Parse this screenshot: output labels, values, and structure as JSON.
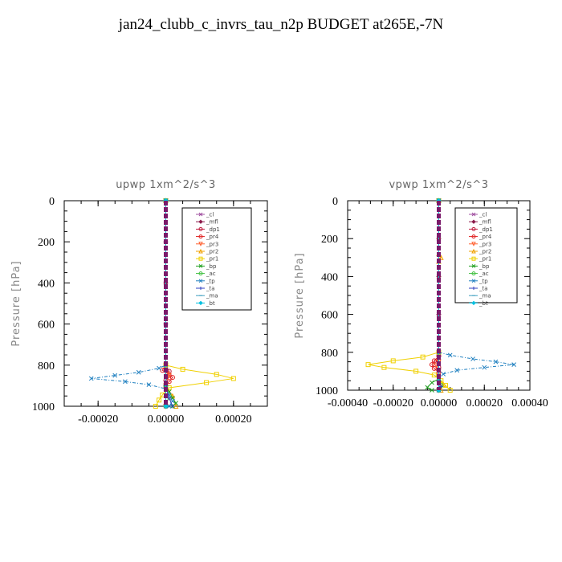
{
  "page_title": "jan24_clubb_c_invrs_tau_n2p  BUDGET at265E,-7N",
  "chart_data": [
    {
      "type": "line",
      "title": "upwp   1xm^2/s^3",
      "ylabel": "Pressure [hPa]",
      "xlabel": "",
      "xlim": [
        -0.0003,
        0.0003
      ],
      "ylim": [
        1000,
        0
      ],
      "xticks": [
        -0.0002,
        0.0,
        0.0002
      ],
      "xtick_labels": [
        "-0.00020",
        "0.00000",
        "0.00020"
      ],
      "yticks": [
        0,
        200,
        400,
        600,
        800,
        1000
      ],
      "ytick_labels": [
        "0",
        "200",
        "400",
        "600",
        "800",
        "1000"
      ],
      "legend_position": "top-right",
      "series": [
        {
          "name": "_cl",
          "color": "#a050a0",
          "marker": "x",
          "points": [
            [
              0,
              0
            ],
            [
              0,
              200
            ],
            [
              0,
              400
            ],
            [
              0,
              600
            ],
            [
              0,
              800
            ],
            [
              0,
              1000
            ]
          ]
        },
        {
          "name": "_mfl",
          "color": "#8b1a4a",
          "marker": "diamond",
          "points": [
            [
              0,
              0
            ],
            [
              0,
              200
            ],
            [
              0,
              400
            ],
            [
              0,
              600
            ],
            [
              0,
              800
            ],
            [
              0,
              1000
            ]
          ]
        },
        {
          "name": "_dp1",
          "color": "#c02040",
          "marker": "circle",
          "points": [
            [
              0,
              0
            ],
            [
              0,
              800
            ],
            [
              1e-05,
              830
            ],
            [
              1e-05,
              850
            ],
            [
              0,
              875
            ],
            [
              0,
              900
            ],
            [
              0,
              1000
            ]
          ]
        },
        {
          "name": "_pr4",
          "color": "#e02020",
          "marker": "circle",
          "points": [
            [
              0,
              0
            ],
            [
              0,
              800
            ],
            [
              -1e-05,
              825
            ],
            [
              5e-06,
              840
            ],
            [
              2e-05,
              860
            ],
            [
              1e-05,
              880
            ],
            [
              0,
              900
            ],
            [
              0,
              1000
            ]
          ]
        },
        {
          "name": "_pr3",
          "color": "#ff6030",
          "marker": "triangle-down",
          "points": [
            [
              0,
              0
            ],
            [
              0,
              800
            ],
            [
              1e-05,
              850
            ],
            [
              0,
              900
            ],
            [
              0,
              1000
            ]
          ]
        },
        {
          "name": "_pr2",
          "color": "#f0a000",
          "marker": "triangle",
          "points": [
            [
              0,
              0
            ],
            [
              0,
              900
            ],
            [
              2e-05,
              950
            ],
            [
              3e-05,
              1000
            ]
          ]
        },
        {
          "name": "_pr1",
          "color": "#f0d000",
          "marker": "square",
          "points": [
            [
              0,
              0
            ],
            [
              0,
              800
            ],
            [
              5e-05,
              820
            ],
            [
              0.00015,
              845
            ],
            [
              0.0002,
              865
            ],
            [
              0.00012,
              885
            ],
            [
              1e-05,
              910
            ],
            [
              -1e-05,
              945
            ],
            [
              -2e-05,
              970
            ],
            [
              -3e-05,
              1000
            ]
          ]
        },
        {
          "name": "_bp",
          "color": "#20a020",
          "marker": "x",
          "points": [
            [
              0,
              0
            ],
            [
              0,
              900
            ],
            [
              1e-05,
              930
            ],
            [
              2e-05,
              960
            ],
            [
              3e-05,
              985
            ],
            [
              2e-05,
              1000
            ]
          ]
        },
        {
          "name": "_ac",
          "color": "#40c040",
          "marker": "circle",
          "points": [
            [
              0,
              0
            ],
            [
              0,
              900
            ],
            [
              1e-05,
              950
            ],
            [
              0,
              1000
            ]
          ]
        },
        {
          "name": "_tp",
          "color": "#2080c0",
          "marker": "x",
          "points": [
            [
              0,
              0
            ],
            [
              0,
              800
            ],
            [
              -2e-05,
              815
            ],
            [
              -8e-05,
              835
            ],
            [
              -0.00015,
              850
            ],
            [
              -0.00022,
              865
            ],
            [
              -0.00012,
              880
            ],
            [
              -5e-05,
              895
            ],
            [
              0,
              915
            ],
            [
              1e-05,
              945
            ],
            [
              2e-05,
              975
            ],
            [
              1e-05,
              1000
            ]
          ]
        },
        {
          "name": "_ta",
          "color": "#3040c0",
          "marker": "plus",
          "points": [
            [
              0,
              0
            ],
            [
              0,
              900
            ],
            [
              1e-05,
              960
            ],
            [
              2e-05,
              1000
            ]
          ]
        },
        {
          "name": "_ma",
          "color": "#40a0c0",
          "marker": "dash",
          "points": [
            [
              0,
              0
            ],
            [
              0,
              1000
            ]
          ]
        },
        {
          "name": "_bt",
          "color": "#00c0e0",
          "marker": "diamond",
          "points": [
            [
              0,
              0
            ],
            [
              0,
              1000
            ]
          ]
        }
      ]
    },
    {
      "type": "line",
      "title": "vpwp   1xm^2/s^3",
      "ylabel": "Pressure [hPa]",
      "xlabel": "",
      "xlim": [
        -0.0004,
        0.0004
      ],
      "ylim": [
        1000,
        0
      ],
      "xticks": [
        -0.0004,
        -0.0002,
        0.0,
        0.0002,
        0.0004
      ],
      "xtick_labels": [
        "-0.00040",
        "-0.00020",
        "0.00000",
        "0.00020",
        "0.00040"
      ],
      "yticks": [
        0,
        200,
        400,
        600,
        800,
        1000
      ],
      "ytick_labels": [
        "0",
        "200",
        "400",
        "600",
        "800",
        "1000"
      ],
      "legend_position": "top-right",
      "series": [
        {
          "name": "_cl",
          "color": "#a050a0",
          "marker": "x",
          "points": [
            [
              0,
              0
            ],
            [
              0,
              200
            ],
            [
              0,
              400
            ],
            [
              0,
              600
            ],
            [
              0,
              800
            ],
            [
              0,
              1000
            ]
          ]
        },
        {
          "name": "_mfl",
          "color": "#8b1a4a",
          "marker": "diamond",
          "points": [
            [
              0,
              0
            ],
            [
              0,
              200
            ],
            [
              0,
              400
            ],
            [
              0,
              600
            ],
            [
              0,
              800
            ],
            [
              0,
              1000
            ]
          ]
        },
        {
          "name": "_dp1",
          "color": "#c02040",
          "marker": "circle",
          "points": [
            [
              0,
              0
            ],
            [
              0,
              820
            ],
            [
              -1e-05,
              850
            ],
            [
              0,
              880
            ],
            [
              0,
              1000
            ]
          ]
        },
        {
          "name": "_pr4",
          "color": "#e02020",
          "marker": "circle",
          "points": [
            [
              0,
              0
            ],
            [
              0,
              820
            ],
            [
              -2e-05,
              845
            ],
            [
              -3e-05,
              865
            ],
            [
              -2e-05,
              885
            ],
            [
              0,
              905
            ],
            [
              0,
              1000
            ]
          ]
        },
        {
          "name": "_pr3",
          "color": "#ff6030",
          "marker": "triangle-down",
          "points": [
            [
              0,
              0
            ],
            [
              0,
              850
            ],
            [
              -1e-05,
              870
            ],
            [
              0,
              900
            ],
            [
              0,
              1000
            ]
          ]
        },
        {
          "name": "_pr2",
          "color": "#f0a000",
          "marker": "triangle",
          "points": [
            [
              0,
              0
            ],
            [
              0,
              280
            ],
            [
              1e-05,
              300
            ],
            [
              0,
              320
            ],
            [
              0,
              940
            ],
            [
              2e-05,
              970
            ],
            [
              1e-05,
              1000
            ]
          ]
        },
        {
          "name": "_pr1",
          "color": "#f0d000",
          "marker": "square",
          "points": [
            [
              0,
              0
            ],
            [
              0,
              800
            ],
            [
              -7e-05,
              825
            ],
            [
              -0.0002,
              845
            ],
            [
              -0.00031,
              865
            ],
            [
              -0.00024,
              880
            ],
            [
              -0.0001,
              900
            ],
            [
              -2e-05,
              920
            ],
            [
              1e-05,
              950
            ],
            [
              3e-05,
              975
            ],
            [
              5e-05,
              1000
            ]
          ]
        },
        {
          "name": "_bp",
          "color": "#20a020",
          "marker": "x",
          "points": [
            [
              0,
              0
            ],
            [
              0,
              940
            ],
            [
              -3e-05,
              960
            ],
            [
              -5e-05,
              985
            ],
            [
              -3e-05,
              1000
            ]
          ]
        },
        {
          "name": "_ac",
          "color": "#40c040",
          "marker": "circle",
          "points": [
            [
              0,
              0
            ],
            [
              0,
              950
            ],
            [
              1e-05,
              975
            ],
            [
              0,
              1000
            ]
          ]
        },
        {
          "name": "_tp",
          "color": "#2080c0",
          "marker": "x",
          "points": [
            [
              0,
              0
            ],
            [
              0,
              800
            ],
            [
              5e-05,
              815
            ],
            [
              0.00015,
              835
            ],
            [
              0.00025,
              850
            ],
            [
              0.00033,
              865
            ],
            [
              0.0002,
              880
            ],
            [
              8e-05,
              895
            ],
            [
              2e-05,
              915
            ],
            [
              0,
              940
            ],
            [
              0,
              1000
            ]
          ]
        },
        {
          "name": "_ta",
          "color": "#3040c0",
          "marker": "plus",
          "points": [
            [
              0,
              0
            ],
            [
              0,
              950
            ],
            [
              1e-05,
              980
            ],
            [
              0,
              1000
            ]
          ]
        },
        {
          "name": "_ma",
          "color": "#40a0c0",
          "marker": "dash",
          "points": [
            [
              0,
              0
            ],
            [
              0,
              1000
            ]
          ]
        },
        {
          "name": "_bt",
          "color": "#00c0e0",
          "marker": "diamond",
          "points": [
            [
              0,
              0
            ],
            [
              0,
              1000
            ]
          ]
        }
      ]
    }
  ]
}
